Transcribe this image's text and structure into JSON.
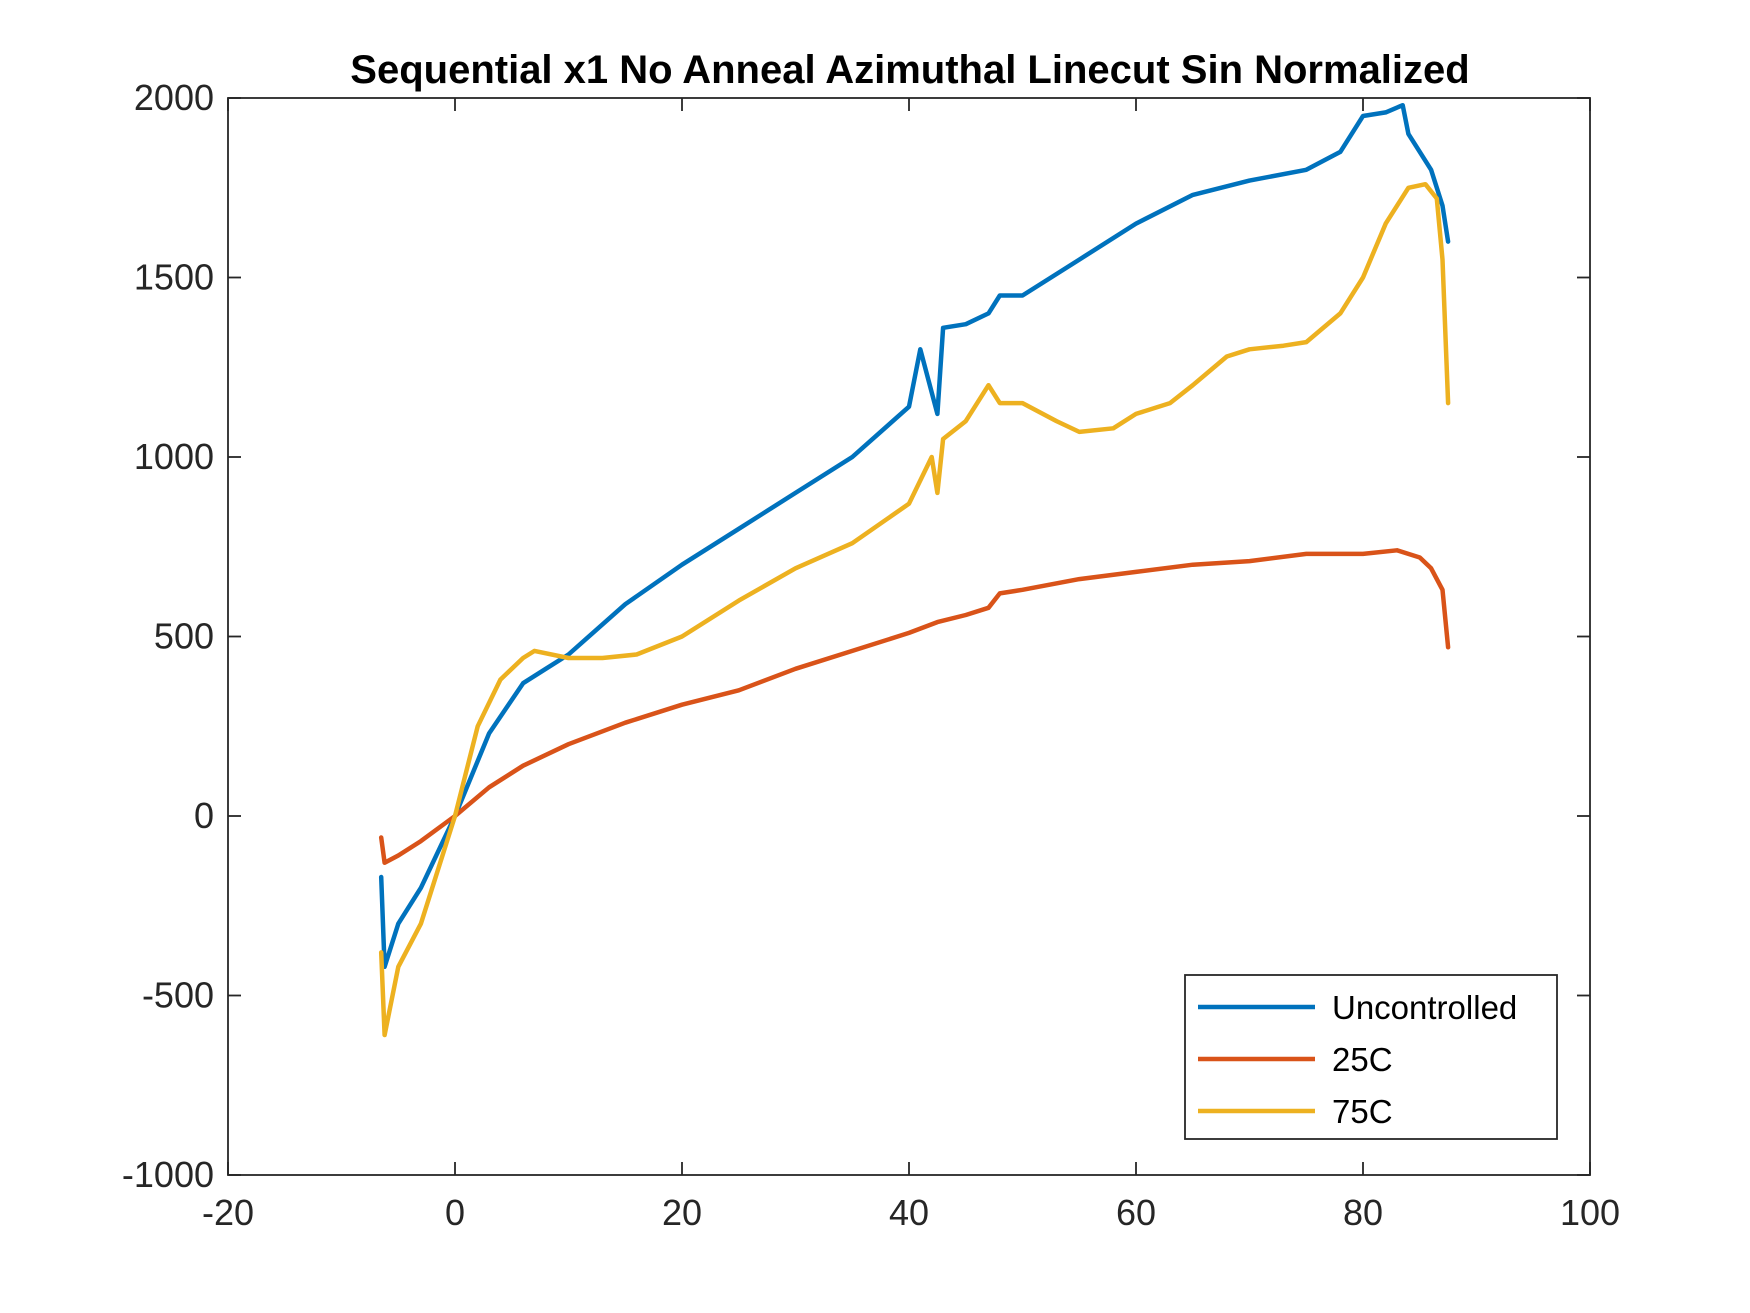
{
  "chart_data": {
    "type": "line",
    "title": "Sequential x1 No Anneal Azimuthal Linecut Sin Normalized",
    "xlabel": "",
    "ylabel": "",
    "xlim": [
      -20,
      100
    ],
    "ylim": [
      -1000,
      2000
    ],
    "xticks": [
      -20,
      0,
      20,
      40,
      60,
      80,
      100
    ],
    "yticks": [
      -1000,
      -500,
      0,
      500,
      1000,
      1500,
      2000
    ],
    "xtick_labels": [
      "-20",
      "0",
      "20",
      "40",
      "60",
      "80",
      "100"
    ],
    "ytick_labels": [
      "-1000",
      "-500",
      "0",
      "500",
      "1000",
      "1500",
      "2000"
    ],
    "grid": false,
    "legend_position": "bottom-right",
    "series": [
      {
        "name": "Uncontrolled",
        "color": "#0072BD",
        "x": [
          -6.5,
          -6.2,
          -5,
          -3,
          0,
          3,
          6,
          8,
          10,
          15,
          20,
          25,
          30,
          35,
          40,
          41,
          42.5,
          43,
          45,
          47,
          48,
          50,
          55,
          60,
          65,
          70,
          75,
          78,
          80,
          82,
          83.5,
          84,
          85,
          86,
          87,
          87.5
        ],
        "y": [
          -170,
          -420,
          -300,
          -200,
          0,
          230,
          370,
          410,
          450,
          590,
          700,
          800,
          900,
          1000,
          1140,
          1300,
          1120,
          1360,
          1370,
          1400,
          1450,
          1450,
          1550,
          1650,
          1730,
          1770,
          1800,
          1850,
          1950,
          1960,
          1980,
          1900,
          1850,
          1800,
          1700,
          1600
        ]
      },
      {
        "name": "25C",
        "color": "#D95319",
        "x": [
          -6.5,
          -6.2,
          -5,
          -3,
          0,
          3,
          6,
          10,
          15,
          20,
          25,
          30,
          35,
          40,
          42.5,
          45,
          47,
          48,
          50,
          55,
          60,
          65,
          70,
          75,
          80,
          83,
          85,
          86,
          87,
          87.5
        ],
        "y": [
          -60,
          -130,
          -110,
          -70,
          0,
          80,
          140,
          200,
          260,
          310,
          350,
          410,
          460,
          510,
          540,
          560,
          580,
          620,
          630,
          660,
          680,
          700,
          710,
          730,
          730,
          740,
          720,
          690,
          630,
          470
        ]
      },
      {
        "name": "75C",
        "color": "#EDB120",
        "x": [
          -6.5,
          -6.2,
          -5,
          -3,
          0,
          2,
          4,
          6,
          7,
          10,
          13,
          16,
          20,
          25,
          30,
          35,
          40,
          42,
          42.5,
          43,
          45,
          47,
          48,
          50,
          53,
          55,
          58,
          60,
          63,
          65,
          68,
          70,
          73,
          75,
          78,
          80,
          82,
          84,
          85.5,
          86.5,
          87,
          87.5
        ],
        "y": [
          -380,
          -610,
          -420,
          -300,
          0,
          250,
          380,
          440,
          460,
          440,
          440,
          450,
          500,
          600,
          690,
          760,
          870,
          1000,
          900,
          1050,
          1100,
          1200,
          1150,
          1150,
          1100,
          1070,
          1080,
          1120,
          1150,
          1200,
          1280,
          1300,
          1310,
          1320,
          1400,
          1500,
          1650,
          1750,
          1760,
          1720,
          1550,
          1150
        ]
      }
    ]
  }
}
